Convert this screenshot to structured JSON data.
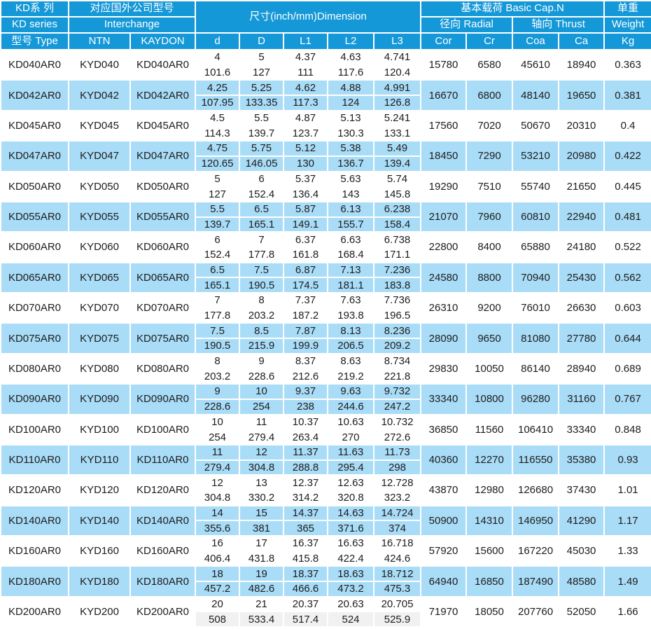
{
  "table": {
    "title": "KD series bearing specification table",
    "colors": {
      "header_bg": "#1598D8",
      "header_text": "#FFFFFF",
      "row_alt_bg": "#A9DCF7",
      "row_bg": "#FFFFFF",
      "last_mm_bg": "#F1F1F1",
      "body_text": "#1D1D1D",
      "grid": "#FFFFFF"
    },
    "header": {
      "kd_series_cn": "KD系 列",
      "kd_series_en": "KD series",
      "type_label": "型号 Type",
      "interchange_cn": "对应国外公司型号",
      "interchange_en": "Interchange",
      "ntn": "NTN",
      "kaydon": "KAYDON",
      "dimension": "尺寸(inch/mm)Dimension",
      "basic_cap": "基本载荷 Basic Cap.N",
      "radial": "径向 Radial",
      "thrust": "轴向 Thrust",
      "weight_cn": "单重",
      "weight_en": "Weight",
      "dim_cols": [
        "d",
        "D",
        "L1",
        "L2",
        "L3"
      ],
      "load_cols": [
        "Cor",
        "Cr",
        "Coa",
        "Ca"
      ],
      "kg": "Kg"
    },
    "rows": [
      {
        "type": "KD040AR0",
        "ntn": "KYD040",
        "kaydon": "KD040AR0",
        "d": [
          "4",
          "101.6"
        ],
        "D": [
          "5",
          "127"
        ],
        "L1": [
          "4.37",
          "111"
        ],
        "L2": [
          "4.63",
          "117.6"
        ],
        "L3": [
          "4.741",
          "120.4"
        ],
        "cor": "15780",
        "cr": "6580",
        "coa": "45610",
        "ca": "18940",
        "kg": "0.363"
      },
      {
        "type": "KD042AR0",
        "ntn": "KYD042",
        "kaydon": "KD042AR0",
        "d": [
          "4.25",
          "107.95"
        ],
        "D": [
          "5.25",
          "133.35"
        ],
        "L1": [
          "4.62",
          "117.3"
        ],
        "L2": [
          "4.88",
          "124"
        ],
        "L3": [
          "4.991",
          "126.8"
        ],
        "cor": "16670",
        "cr": "6800",
        "coa": "48140",
        "ca": "19650",
        "kg": "0.381"
      },
      {
        "type": "KD045AR0",
        "ntn": "KYD045",
        "kaydon": "KD045AR0",
        "d": [
          "4.5",
          "114.3"
        ],
        "D": [
          "5.5",
          "139.7"
        ],
        "L1": [
          "4.87",
          "123.7"
        ],
        "L2": [
          "5.13",
          "130.3"
        ],
        "L3": [
          "5.241",
          "133.1"
        ],
        "cor": "17560",
        "cr": "7020",
        "coa": "50670",
        "ca": "20310",
        "kg": "0.4"
      },
      {
        "type": "KD047AR0",
        "ntn": "KYD047",
        "kaydon": "KD047AR0",
        "d": [
          "4.75",
          "120.65"
        ],
        "D": [
          "5.75",
          "146.05"
        ],
        "L1": [
          "5.12",
          "130"
        ],
        "L2": [
          "5.38",
          "136.7"
        ],
        "L3": [
          "5.49",
          "139.4"
        ],
        "cor": "18450",
        "cr": "7290",
        "coa": "53210",
        "ca": "20980",
        "kg": "0.422"
      },
      {
        "type": "KD050AR0",
        "ntn": "KYD050",
        "kaydon": "KD050AR0",
        "d": [
          "5",
          "127"
        ],
        "D": [
          "6",
          "152.4"
        ],
        "L1": [
          "5.37",
          "136.4"
        ],
        "L2": [
          "5.63",
          "143"
        ],
        "L3": [
          "5.74",
          "145.8"
        ],
        "cor": "19290",
        "cr": "7510",
        "coa": "55740",
        "ca": "21650",
        "kg": "0.445"
      },
      {
        "type": "KD055AR0",
        "ntn": "KYD055",
        "kaydon": "KD055AR0",
        "d": [
          "5.5",
          "139.7"
        ],
        "D": [
          "6.5",
          "165.1"
        ],
        "L1": [
          "5.87",
          "149.1"
        ],
        "L2": [
          "6.13",
          "155.7"
        ],
        "L3": [
          "6.238",
          "158.4"
        ],
        "cor": "21070",
        "cr": "7960",
        "coa": "60810",
        "ca": "22940",
        "kg": "0.481"
      },
      {
        "type": "KD060AR0",
        "ntn": "KYD060",
        "kaydon": "KD060AR0",
        "d": [
          "6",
          "152.4"
        ],
        "D": [
          "7",
          "177.8"
        ],
        "L1": [
          "6.37",
          "161.8"
        ],
        "L2": [
          "6.63",
          "168.4"
        ],
        "L3": [
          "6.738",
          "171.1"
        ],
        "cor": "22800",
        "cr": "8400",
        "coa": "65880",
        "ca": "24180",
        "kg": "0.522"
      },
      {
        "type": "KD065AR0",
        "ntn": "KYD065",
        "kaydon": "KD065AR0",
        "d": [
          "6.5",
          "165.1"
        ],
        "D": [
          "7.5",
          "190.5"
        ],
        "L1": [
          "6.87",
          "174.5"
        ],
        "L2": [
          "7.13",
          "181.1"
        ],
        "L3": [
          "7.236",
          "183.8"
        ],
        "cor": "24580",
        "cr": "8800",
        "coa": "70940",
        "ca": "25430",
        "kg": "0.562"
      },
      {
        "type": "KD070AR0",
        "ntn": "KYD070",
        "kaydon": "KD070AR0",
        "d": [
          "7",
          "177.8"
        ],
        "D": [
          "8",
          "203.2"
        ],
        "L1": [
          "7.37",
          "187.2"
        ],
        "L2": [
          "7.63",
          "193.8"
        ],
        "L3": [
          "7.736",
          "196.5"
        ],
        "cor": "26310",
        "cr": "9200",
        "coa": "76010",
        "ca": "26630",
        "kg": "0.603"
      },
      {
        "type": "KD075AR0",
        "ntn": "KYD075",
        "kaydon": "KD075AR0",
        "d": [
          "7.5",
          "190.5"
        ],
        "D": [
          "8.5",
          "215.9"
        ],
        "L1": [
          "7.87",
          "199.9"
        ],
        "L2": [
          "8.13",
          "206.5"
        ],
        "L3": [
          "8.236",
          "209.2"
        ],
        "cor": "28090",
        "cr": "9650",
        "coa": "81080",
        "ca": "27780",
        "kg": "0.644"
      },
      {
        "type": "KD080AR0",
        "ntn": "KYD080",
        "kaydon": "KD080AR0",
        "d": [
          "8",
          "203.2"
        ],
        "D": [
          "9",
          "228.6"
        ],
        "L1": [
          "8.37",
          "212.6"
        ],
        "L2": [
          "8.63",
          "219.2"
        ],
        "L3": [
          "8.734",
          "221.8"
        ],
        "cor": "29830",
        "cr": "10050",
        "coa": "86140",
        "ca": "28940",
        "kg": "0.689"
      },
      {
        "type": "KD090AR0",
        "ntn": "KYD090",
        "kaydon": "KD090AR0",
        "d": [
          "9",
          "228.6"
        ],
        "D": [
          "10",
          "254"
        ],
        "L1": [
          "9.37",
          "238"
        ],
        "L2": [
          "9.63",
          "244.6"
        ],
        "L3": [
          "9.732",
          "247.2"
        ],
        "cor": "33340",
        "cr": "10800",
        "coa": "96280",
        "ca": "31160",
        "kg": "0.767"
      },
      {
        "type": "KD100AR0",
        "ntn": "KYD100",
        "kaydon": "KD100AR0",
        "d": [
          "10",
          "254"
        ],
        "D": [
          "11",
          "279.4"
        ],
        "L1": [
          "10.37",
          "263.4"
        ],
        "L2": [
          "10.63",
          "270"
        ],
        "L3": [
          "10.732",
          "272.6"
        ],
        "cor": "36850",
        "cr": "11560",
        "coa": "106410",
        "ca": "33340",
        "kg": "0.848"
      },
      {
        "type": "KD110AR0",
        "ntn": "KYD110",
        "kaydon": "KD110AR0",
        "d": [
          "11",
          "279.4"
        ],
        "D": [
          "12",
          "304.8"
        ],
        "L1": [
          "11.37",
          "288.8"
        ],
        "L2": [
          "11.63",
          "295.4"
        ],
        "L3": [
          "11.73",
          "298"
        ],
        "cor": "40360",
        "cr": "12270",
        "coa": "116550",
        "ca": "35380",
        "kg": "0.93"
      },
      {
        "type": "KD120AR0",
        "ntn": "KYD120",
        "kaydon": "KD120AR0",
        "d": [
          "12",
          "304.8"
        ],
        "D": [
          "13",
          "330.2"
        ],
        "L1": [
          "12.37",
          "314.2"
        ],
        "L2": [
          "12.63",
          "320.8"
        ],
        "L3": [
          "12.728",
          "323.2"
        ],
        "cor": "43870",
        "cr": "12980",
        "coa": "126680",
        "ca": "37430",
        "kg": "1.01"
      },
      {
        "type": "KD140AR0",
        "ntn": "KYD140",
        "kaydon": "KD140AR0",
        "d": [
          "14",
          "355.6"
        ],
        "D": [
          "15",
          "381"
        ],
        "L1": [
          "14.37",
          "365"
        ],
        "L2": [
          "14.63",
          "371.6"
        ],
        "L3": [
          "14.724",
          "374"
        ],
        "cor": "50900",
        "cr": "14310",
        "coa": "146950",
        "ca": "41290",
        "kg": "1.17"
      },
      {
        "type": "KD160AR0",
        "ntn": "KYD160",
        "kaydon": "KD160AR0",
        "d": [
          "16",
          "406.4"
        ],
        "D": [
          "17",
          "431.8"
        ],
        "L1": [
          "16.37",
          "415.8"
        ],
        "L2": [
          "16.63",
          "422.4"
        ],
        "L3": [
          "16.718",
          "424.6"
        ],
        "cor": "57920",
        "cr": "15600",
        "coa": "167220",
        "ca": "45030",
        "kg": "1.33"
      },
      {
        "type": "KD180AR0",
        "ntn": "KYD180",
        "kaydon": "KD180AR0",
        "d": [
          "18",
          "457.2"
        ],
        "D": [
          "19",
          "482.6"
        ],
        "L1": [
          "18.37",
          "466.6"
        ],
        "L2": [
          "18.63",
          "473.2"
        ],
        "L3": [
          "18.712",
          "475.3"
        ],
        "cor": "64940",
        "cr": "16850",
        "coa": "187490",
        "ca": "48580",
        "kg": "1.49"
      },
      {
        "type": "KD200AR0",
        "ntn": "KYD200",
        "kaydon": "KD200AR0",
        "d": [
          "20",
          "508"
        ],
        "D": [
          "21",
          "533.4"
        ],
        "L1": [
          "20.37",
          "517.4"
        ],
        "L2": [
          "20.63",
          "524"
        ],
        "L3": [
          "20.705",
          "525.9"
        ],
        "cor": "71970",
        "cr": "18050",
        "coa": "207760",
        "ca": "52050",
        "kg": "1.66"
      }
    ]
  }
}
